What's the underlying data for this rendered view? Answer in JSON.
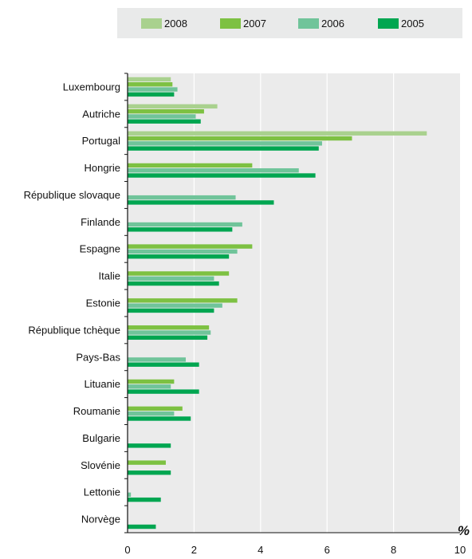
{
  "chart_data": {
    "type": "bar",
    "orientation": "horizontal",
    "categories": [
      "Luxembourg",
      "Autriche",
      "Portugal",
      "Hongrie",
      "République slovaque",
      "Finlande",
      "Espagne",
      "Italie",
      "Estonie",
      "République tchèque",
      "Pays-Bas",
      "Lituanie",
      "Roumanie",
      "Bulgarie",
      "Slovénie",
      "Lettonie",
      "Norvège"
    ],
    "series": [
      {
        "name": "2008",
        "color": "#a9d18e",
        "values": [
          1.3,
          2.7,
          9.0,
          null,
          null,
          null,
          null,
          null,
          null,
          null,
          null,
          null,
          null,
          null,
          null,
          null,
          null
        ]
      },
      {
        "name": "2007",
        "color": "#7dc142",
        "values": [
          1.35,
          2.3,
          6.75,
          3.75,
          null,
          null,
          3.75,
          3.05,
          3.3,
          2.45,
          null,
          1.4,
          1.65,
          null,
          1.15,
          null,
          null
        ]
      },
      {
        "name": "2006",
        "color": "#70c49a",
        "values": [
          1.5,
          2.05,
          5.85,
          5.15,
          3.25,
          3.45,
          3.3,
          2.6,
          2.85,
          2.5,
          1.75,
          1.3,
          1.4,
          null,
          null,
          0.1,
          null
        ]
      },
      {
        "name": "2005",
        "color": "#00a651",
        "values": [
          1.4,
          2.2,
          5.75,
          5.65,
          4.4,
          3.15,
          3.05,
          2.75,
          2.6,
          2.4,
          2.15,
          2.15,
          1.9,
          1.3,
          1.3,
          1.0,
          0.85
        ]
      }
    ],
    "xlim": [
      0,
      10
    ],
    "xticks": [
      0,
      2,
      4,
      6,
      8,
      10
    ],
    "x_unit": "%",
    "grid": "vertical",
    "legend_position": "top"
  }
}
